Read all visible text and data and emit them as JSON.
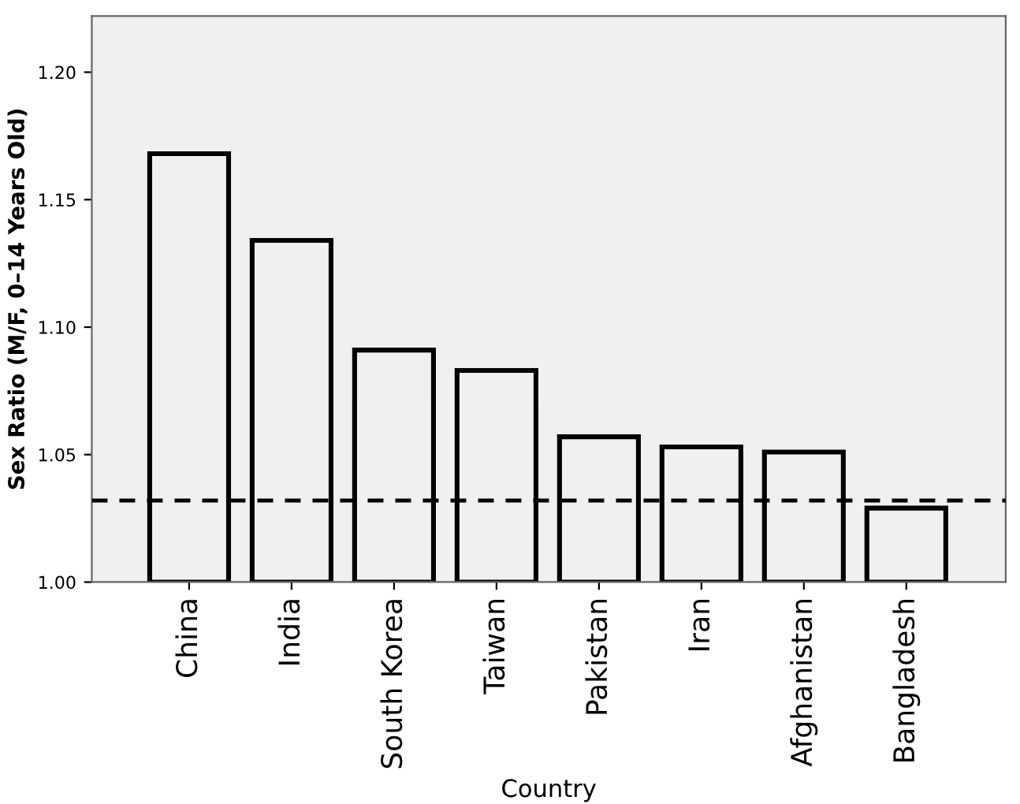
{
  "chart_data": {
    "type": "bar",
    "ylabel": "Sex Ratio (M/F, 0–14 Years Old)",
    "xlabel": "Country",
    "categories": [
      "China",
      "India",
      "South Korea",
      "Taiwan",
      "Pakistan",
      "Iran",
      "Afghanistan",
      "Bangladesh"
    ],
    "values": [
      1.168,
      1.134,
      1.091,
      1.083,
      1.057,
      1.053,
      1.051,
      1.029
    ],
    "color": "#f0f0f0",
    "ylim": [
      1.0,
      1.222
    ],
    "yticks": [
      {
        "value": 1.0,
        "label": "1.00"
      },
      {
        "value": 1.05,
        "label": "1.05"
      },
      {
        "value": 1.1,
        "label": "1.10"
      },
      {
        "value": 1.15,
        "label": "1.15"
      },
      {
        "value": 1.2,
        "label": "1.20"
      }
    ],
    "ref_lines": [
      {
        "axis": "y",
        "value": 1.032,
        "color": "#000000",
        "line_style": "dashed"
      }
    ],
    "grid": false
  }
}
